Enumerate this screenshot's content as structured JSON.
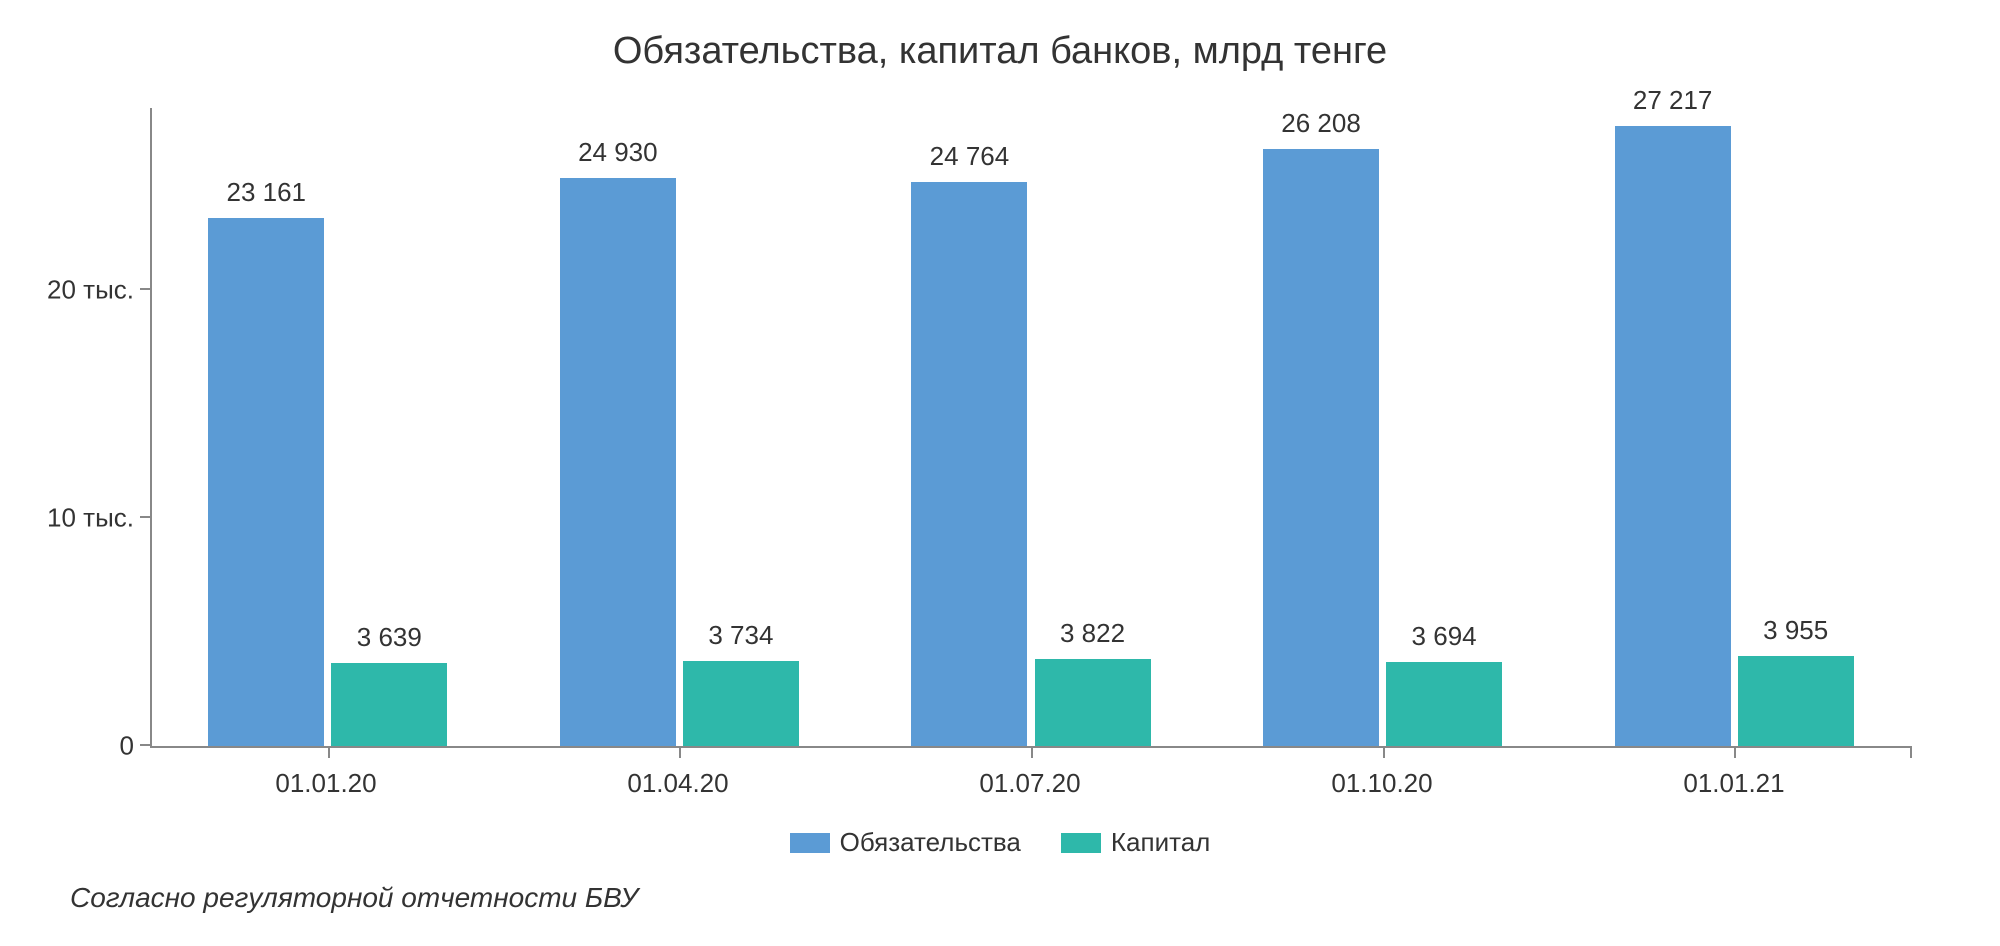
{
  "chart": {
    "type": "bar",
    "title": "Обязательства, капитал банков, млрд тенге",
    "background_color": "#ffffff",
    "axis_color": "#888888",
    "text_color": "#333333",
    "title_fontsize": 38,
    "label_fontsize": 26,
    "bar_label_fontsize": 26,
    "font_family": "Helvetica Neue, Helvetica, Arial, sans-serif",
    "y_axis": {
      "min": 0,
      "max": 28000,
      "ticks": [
        {
          "value": 0,
          "label": "0"
        },
        {
          "value": 10000,
          "label": "10 тыс."
        },
        {
          "value": 20000,
          "label": "20 тыс."
        }
      ]
    },
    "categories": [
      "01.01.20",
      "01.04.20",
      "01.07.20",
      "01.10.20",
      "01.01.21"
    ],
    "series": [
      {
        "name": "Обязательства",
        "color": "#5b9bd5",
        "values": [
          23161,
          24930,
          24764,
          26208,
          27217
        ],
        "labels": [
          "23 161",
          "24 930",
          "24 764",
          "26 208",
          "27 217"
        ]
      },
      {
        "name": "Капитал",
        "color": "#2eb8aa",
        "values": [
          3639,
          3734,
          3822,
          3694,
          3955
        ],
        "labels": [
          "3 639",
          "3 734",
          "3 822",
          "3 694",
          "3 955"
        ]
      }
    ],
    "bar_width_pct": 33,
    "group_gap_pct": 2,
    "footnote": "Согласно регуляторной отчетности БВУ"
  }
}
